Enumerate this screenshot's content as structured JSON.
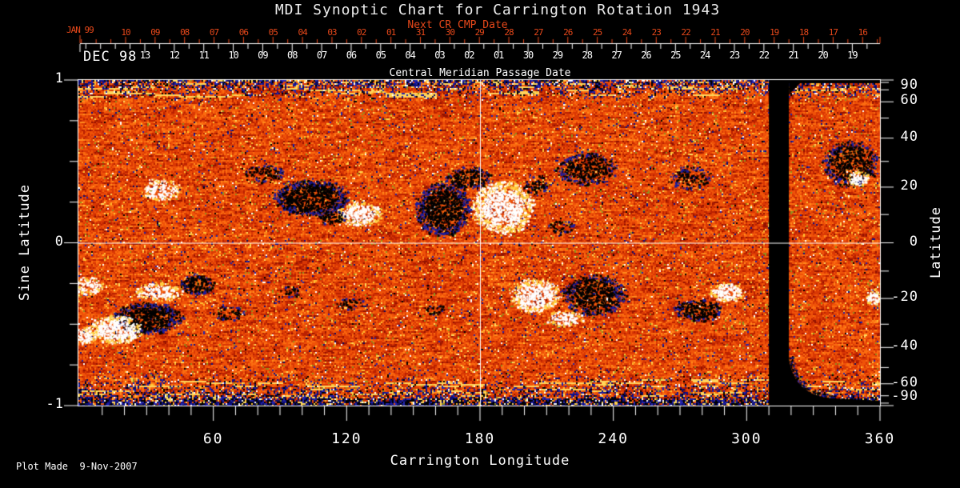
{
  "title": "MDI Synoptic Chart for Carrington Rotation 1943",
  "footer": {
    "plot_made": "Plot Made  9-Nov-2007"
  },
  "axes": {
    "top_red": {
      "label": "Next CR CMP Date",
      "era_label": "JAN 99",
      "tick_labels": [
        "10",
        "09",
        "08",
        "07",
        "06",
        "05",
        "04",
        "03",
        "02",
        "01",
        "31",
        "30",
        "29",
        "28",
        "27",
        "26",
        "25",
        "24",
        "23",
        "22",
        "21",
        "20",
        "19",
        "18",
        "17",
        "16"
      ]
    },
    "top_white": {
      "label": "Central Meridian Passage Date",
      "era_label": "DEC 98",
      "tick_labels": [
        "13",
        "12",
        "11",
        "10",
        "09",
        "08",
        "07",
        "06",
        "05",
        "04",
        "03",
        "02",
        "01",
        "30",
        "29",
        "28",
        "27",
        "26",
        "25",
        "24",
        "23",
        "22",
        "21",
        "20",
        "19"
      ]
    },
    "bottom": {
      "label": "Carrington Longitude",
      "tick_labels": [
        "60",
        "120",
        "180",
        "240",
        "300",
        "360"
      ],
      "tick_values": [
        60,
        120,
        180,
        240,
        300,
        360
      ]
    },
    "left": {
      "label": "Sine Latitude",
      "tick_labels": [
        "1",
        "0",
        "-1"
      ],
      "tick_values": [
        1,
        0,
        -1
      ],
      "minor_values": [
        0.75,
        0.5,
        0.25,
        -0.25,
        -0.5,
        -0.75
      ]
    },
    "right": {
      "label": "Latitude",
      "tick_labels": [
        "90",
        "60",
        "40",
        "20",
        "0",
        "-20",
        "-40",
        "-60",
        "-90"
      ],
      "tick_values": [
        90,
        60,
        40,
        20,
        0,
        -20,
        -40,
        -60,
        -90
      ],
      "minor_values": [
        80,
        70,
        50,
        30,
        10,
        -10,
        -30,
        -50,
        -70,
        -80
      ]
    }
  },
  "chart_data": {
    "type": "heatmap",
    "title": "MDI Synoptic Chart for Carrington Rotation 1943",
    "xlabel": "Carrington Longitude",
    "ylabel_left": "Sine Latitude",
    "ylabel_right": "Latitude",
    "x_range": [
      0,
      360
    ],
    "y_range_sine_latitude": [
      -1,
      1
    ],
    "x_minor_step_deg": 10,
    "reference_lines": {
      "longitude": 180,
      "sine_latitude": 0
    },
    "data_gap_longitude_range": [
      310,
      319
    ],
    "colors": {
      "background": "#000000",
      "frame": "#ffffff",
      "annotation_red": "#e8481a",
      "positive_field": "#ffffff",
      "positive_fringe": "#ffcf3f",
      "negative_field": "#020202",
      "negative_fringe": "#1a1c9e",
      "speck_blues": [
        "#0d0f88",
        "#2224ad",
        "#0a0b61"
      ],
      "speck_yellow": "#ffc133",
      "speck_yellow2": "#ffda5e",
      "speck_olive": "#8f901c",
      "noise_ramp": [
        {
          "t": 0.1,
          "c": "#6b0a00"
        },
        {
          "t": 0.22,
          "c": "#941300"
        },
        {
          "t": 0.34,
          "c": "#ba2100"
        },
        {
          "t": 0.5,
          "c": "#d93804"
        },
        {
          "t": 0.66,
          "c": "#ef5208"
        },
        {
          "t": 0.8,
          "c": "#fb6c10"
        },
        {
          "t": 0.9,
          "c": "#ff8a1c"
        },
        {
          "t": 0.96,
          "c": "#ffaf2e"
        },
        {
          "t": 0.99,
          "c": "#ffd45c"
        },
        {
          "t": 1.01,
          "c": "#ffefa8"
        }
      ]
    },
    "active_regions": [
      {
        "lon": 36.0,
        "sin_lat": 0.33,
        "rlon": 8.6,
        "rsin": 0.064,
        "polarity": "positive",
        "density": 0.5
      },
      {
        "lon": 82.8,
        "sin_lat": 0.43,
        "rlon": 8.6,
        "rsin": 0.054,
        "polarity": "negative",
        "density": 0.35
      },
      {
        "lon": 103.7,
        "sin_lat": 0.28,
        "rlon": 16.6,
        "rsin": 0.108,
        "polarity": "negative",
        "density": 0.75
      },
      {
        "lon": 125.6,
        "sin_lat": 0.18,
        "rlon": 9.7,
        "rsin": 0.074,
        "polarity": "positive",
        "density": 0.7
      },
      {
        "lon": 113.0,
        "sin_lat": 0.16,
        "rlon": 6.5,
        "rsin": 0.049,
        "polarity": "negative",
        "density": 0.4
      },
      {
        "lon": 163.1,
        "sin_lat": 0.21,
        "rlon": 11.9,
        "rsin": 0.157,
        "polarity": "negative",
        "density": 0.7
      },
      {
        "lon": 174.6,
        "sin_lat": 0.4,
        "rlon": 10.1,
        "rsin": 0.069,
        "polarity": "negative",
        "density": 0.5
      },
      {
        "lon": 190.1,
        "sin_lat": 0.22,
        "rlon": 13.3,
        "rsin": 0.162,
        "polarity": "positive",
        "density": 0.75
      },
      {
        "lon": 205.2,
        "sin_lat": 0.36,
        "rlon": 5.4,
        "rsin": 0.059,
        "polarity": "negative",
        "density": 0.3
      },
      {
        "lon": 227.9,
        "sin_lat": 0.46,
        "rlon": 13.0,
        "rsin": 0.098,
        "polarity": "negative",
        "density": 0.45
      },
      {
        "lon": 274.3,
        "sin_lat": 0.4,
        "rlon": 9.4,
        "rsin": 0.069,
        "polarity": "negative",
        "density": 0.3
      },
      {
        "lon": 346.7,
        "sin_lat": 0.49,
        "rlon": 12.2,
        "rsin": 0.138,
        "polarity": "negative",
        "density": 0.5
      },
      {
        "lon": 349.9,
        "sin_lat": 0.4,
        "rlon": 4.7,
        "rsin": 0.044,
        "polarity": "positive",
        "density": 0.85
      },
      {
        "lon": 216.0,
        "sin_lat": 0.1,
        "rlon": 6.5,
        "rsin": 0.039,
        "polarity": "negative",
        "density": 0.25
      },
      {
        "lon": 3.6,
        "sin_lat": -0.26,
        "rlon": 6.5,
        "rsin": 0.054,
        "polarity": "positive",
        "density": 0.55
      },
      {
        "lon": 34.6,
        "sin_lat": -0.3,
        "rlon": 10.4,
        "rsin": 0.054,
        "polarity": "positive",
        "density": 0.6
      },
      {
        "lon": 52.6,
        "sin_lat": -0.25,
        "rlon": 7.2,
        "rsin": 0.064,
        "polarity": "negative",
        "density": 0.65
      },
      {
        "lon": 29.9,
        "sin_lat": -0.46,
        "rlon": 14.8,
        "rsin": 0.093,
        "polarity": "negative",
        "density": 0.75
      },
      {
        "lon": 15.5,
        "sin_lat": -0.53,
        "rlon": 11.9,
        "rsin": 0.084,
        "polarity": "positive",
        "density": 0.8
      },
      {
        "lon": 0.5,
        "sin_lat": -0.57,
        "rlon": 5.8,
        "rsin": 0.054,
        "polarity": "positive",
        "density": 0.6
      },
      {
        "lon": 66.6,
        "sin_lat": -0.43,
        "rlon": 7.9,
        "rsin": 0.044,
        "polarity": "negative",
        "density": 0.3
      },
      {
        "lon": 93.6,
        "sin_lat": -0.3,
        "rlon": 5.0,
        "rsin": 0.034,
        "polarity": "negative",
        "density": 0.25
      },
      {
        "lon": 121.7,
        "sin_lat": -0.37,
        "rlon": 5.8,
        "rsin": 0.039,
        "polarity": "negative",
        "density": 0.3
      },
      {
        "lon": 159.5,
        "sin_lat": -0.41,
        "rlon": 4.7,
        "rsin": 0.034,
        "polarity": "negative",
        "density": 0.3
      },
      {
        "lon": 204.5,
        "sin_lat": -0.32,
        "rlon": 10.8,
        "rsin": 0.103,
        "polarity": "positive",
        "density": 0.7
      },
      {
        "lon": 231.1,
        "sin_lat": -0.32,
        "rlon": 13.3,
        "rsin": 0.123,
        "polarity": "negative",
        "density": 0.6
      },
      {
        "lon": 217.8,
        "sin_lat": -0.46,
        "rlon": 7.9,
        "rsin": 0.049,
        "polarity": "positive",
        "density": 0.5
      },
      {
        "lon": 277.9,
        "sin_lat": -0.41,
        "rlon": 10.4,
        "rsin": 0.064,
        "polarity": "negative",
        "density": 0.6
      },
      {
        "lon": 290.9,
        "sin_lat": -0.3,
        "rlon": 7.9,
        "rsin": 0.054,
        "polarity": "positive",
        "density": 0.7
      },
      {
        "lon": 356.8,
        "sin_lat": -0.33,
        "rlon": 3.2,
        "rsin": 0.044,
        "polarity": "positive",
        "density": 0.9
      }
    ]
  }
}
